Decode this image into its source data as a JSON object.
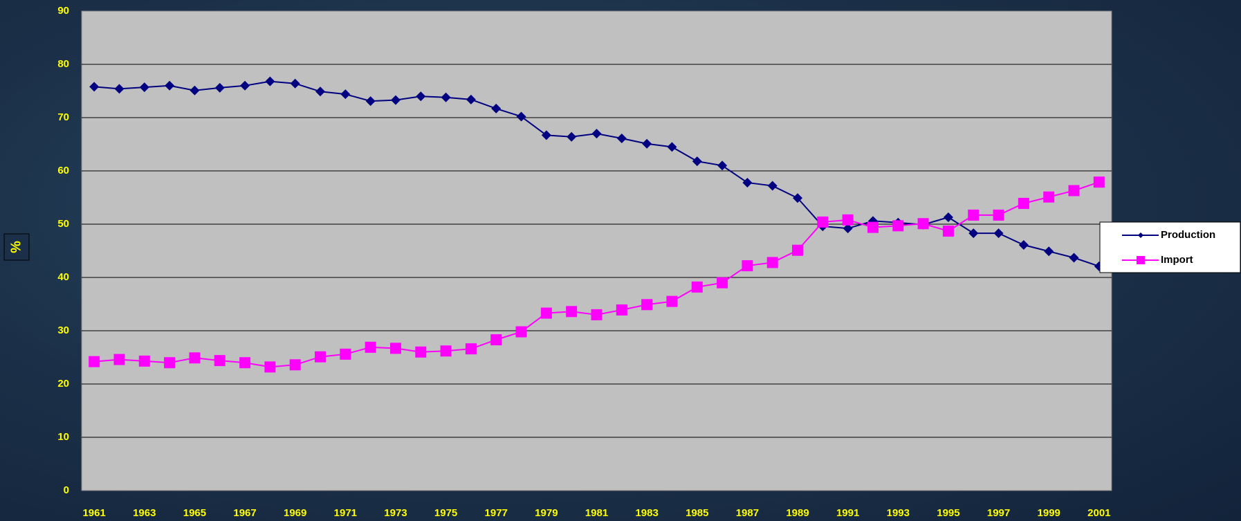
{
  "chart_data": {
    "type": "line",
    "y_label": "%",
    "categories": [
      "1961",
      null,
      "1963",
      null,
      "1965",
      null,
      "1967",
      null,
      "1969",
      null,
      "1971",
      null,
      "1973",
      null,
      "1975",
      null,
      "1977",
      null,
      "1979",
      null,
      "1981",
      null,
      "1983",
      null,
      "1985",
      null,
      "1987",
      null,
      "1989",
      null,
      "1991",
      null,
      "1993",
      null,
      "1995",
      null,
      "1997",
      null,
      "1999",
      null,
      "2001"
    ],
    "series": [
      {
        "name": "Production",
        "color": "#000080",
        "marker": "diamond",
        "values": [
          75.8,
          75.4,
          75.7,
          76.0,
          75.1,
          75.6,
          76.0,
          76.8,
          76.4,
          74.9,
          74.4,
          73.1,
          73.3,
          74.0,
          73.8,
          73.4,
          71.7,
          70.2,
          66.7,
          66.4,
          67.0,
          66.1,
          65.1,
          64.5,
          61.8,
          61.0,
          57.8,
          57.2,
          54.9,
          49.6,
          49.2,
          50.6,
          50.3,
          49.9,
          51.3,
          48.3,
          48.3,
          46.1,
          44.9,
          43.7,
          42.1
        ]
      },
      {
        "name": "Import",
        "color": "#ff00ff",
        "marker": "square",
        "values": [
          24.2,
          24.6,
          24.3,
          24.0,
          24.9,
          24.4,
          24.0,
          23.2,
          23.6,
          25.1,
          25.6,
          26.9,
          26.7,
          26.0,
          26.2,
          26.6,
          28.3,
          29.8,
          33.3,
          33.6,
          33.0,
          33.9,
          34.9,
          35.5,
          38.2,
          39.0,
          42.2,
          42.8,
          45.1,
          50.4,
          50.8,
          49.4,
          49.7,
          50.1,
          48.7,
          51.7,
          51.7,
          53.9,
          55.1,
          56.3,
          57.9
        ]
      }
    ],
    "ylim": [
      0,
      90
    ],
    "yticks": [
      0,
      10,
      20,
      30,
      40,
      50,
      60,
      70,
      80,
      90
    ],
    "grid": true,
    "legend": "right"
  }
}
